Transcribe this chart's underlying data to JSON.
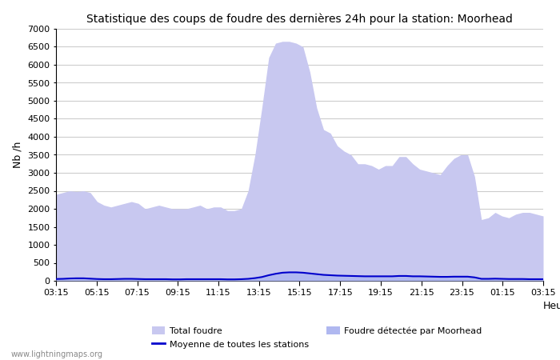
{
  "title": "Statistique des coups de foudre des dernières 24h pour la station: Moorhead",
  "ylabel": "Nb /h",
  "xlabel": "Heure",
  "watermark": "www.lightningmaps.org",
  "ylim": [
    0,
    7000
  ],
  "yticks": [
    0,
    500,
    1000,
    1500,
    2000,
    2500,
    3000,
    3500,
    4000,
    4500,
    5000,
    5500,
    6000,
    6500,
    7000
  ],
  "xtick_labels": [
    "03:15",
    "05:15",
    "07:15",
    "09:15",
    "11:15",
    "13:15",
    "15:15",
    "17:15",
    "19:15",
    "21:15",
    "23:15",
    "01:15",
    "03:15"
  ],
  "color_total": "#c8c8f0",
  "color_station": "#b0b8f0",
  "color_mean": "#0000cc",
  "bg_color": "#ffffff",
  "grid_color": "#cccccc",
  "total_foudre": [
    2400,
    2450,
    2500,
    2480,
    2500,
    2450,
    2200,
    2100,
    2050,
    2100,
    2150,
    2200,
    2150,
    2000,
    2050,
    2100,
    2050,
    2000,
    2000,
    2000,
    2050,
    2100,
    2000,
    2050,
    2050,
    1950,
    1950,
    2000,
    2500,
    3500,
    4800,
    6200,
    6600,
    6650,
    6650,
    6600,
    6500,
    5800,
    4800,
    4200,
    4100,
    3750,
    3600,
    3500,
    3250,
    3250,
    3200,
    3100,
    3200,
    3200,
    3450,
    3450,
    3250,
    3100,
    3050,
    3000,
    2950,
    3200,
    3400,
    3500,
    3500,
    2900,
    1700,
    1750,
    1900,
    1800,
    1750,
    1850,
    1900,
    1900,
    1850,
    1800
  ],
  "station_foudre": [
    50,
    60,
    70,
    75,
    75,
    65,
    55,
    50,
    50,
    55,
    60,
    60,
    55,
    50,
    50,
    50,
    50,
    45,
    45,
    50,
    50,
    50,
    50,
    50,
    50,
    45,
    45,
    50,
    60,
    80,
    110,
    160,
    200,
    230,
    240,
    240,
    230,
    210,
    190,
    170,
    160,
    150,
    145,
    140,
    135,
    130,
    130,
    130,
    130,
    130,
    140,
    140,
    130,
    130,
    125,
    120,
    115,
    115,
    120,
    120,
    120,
    100,
    60,
    60,
    65,
    60,
    55,
    55,
    55,
    50,
    50,
    50
  ],
  "mean_line": [
    50,
    55,
    65,
    70,
    70,
    60,
    50,
    45,
    45,
    50,
    55,
    55,
    50,
    45,
    45,
    45,
    45,
    40,
    40,
    45,
    45,
    45,
    45,
    45,
    45,
    40,
    40,
    45,
    55,
    75,
    105,
    155,
    195,
    225,
    235,
    235,
    225,
    205,
    185,
    165,
    155,
    145,
    140,
    135,
    130,
    125,
    125,
    125,
    125,
    125,
    135,
    135,
    125,
    125,
    120,
    115,
    110,
    110,
    115,
    115,
    115,
    95,
    55,
    55,
    60,
    55,
    50,
    50,
    50,
    45,
    45,
    45
  ],
  "legend_total": "Total foudre",
  "legend_mean": "Moyenne de toutes les stations",
  "legend_station": "Foudre détectée par Moorhead"
}
